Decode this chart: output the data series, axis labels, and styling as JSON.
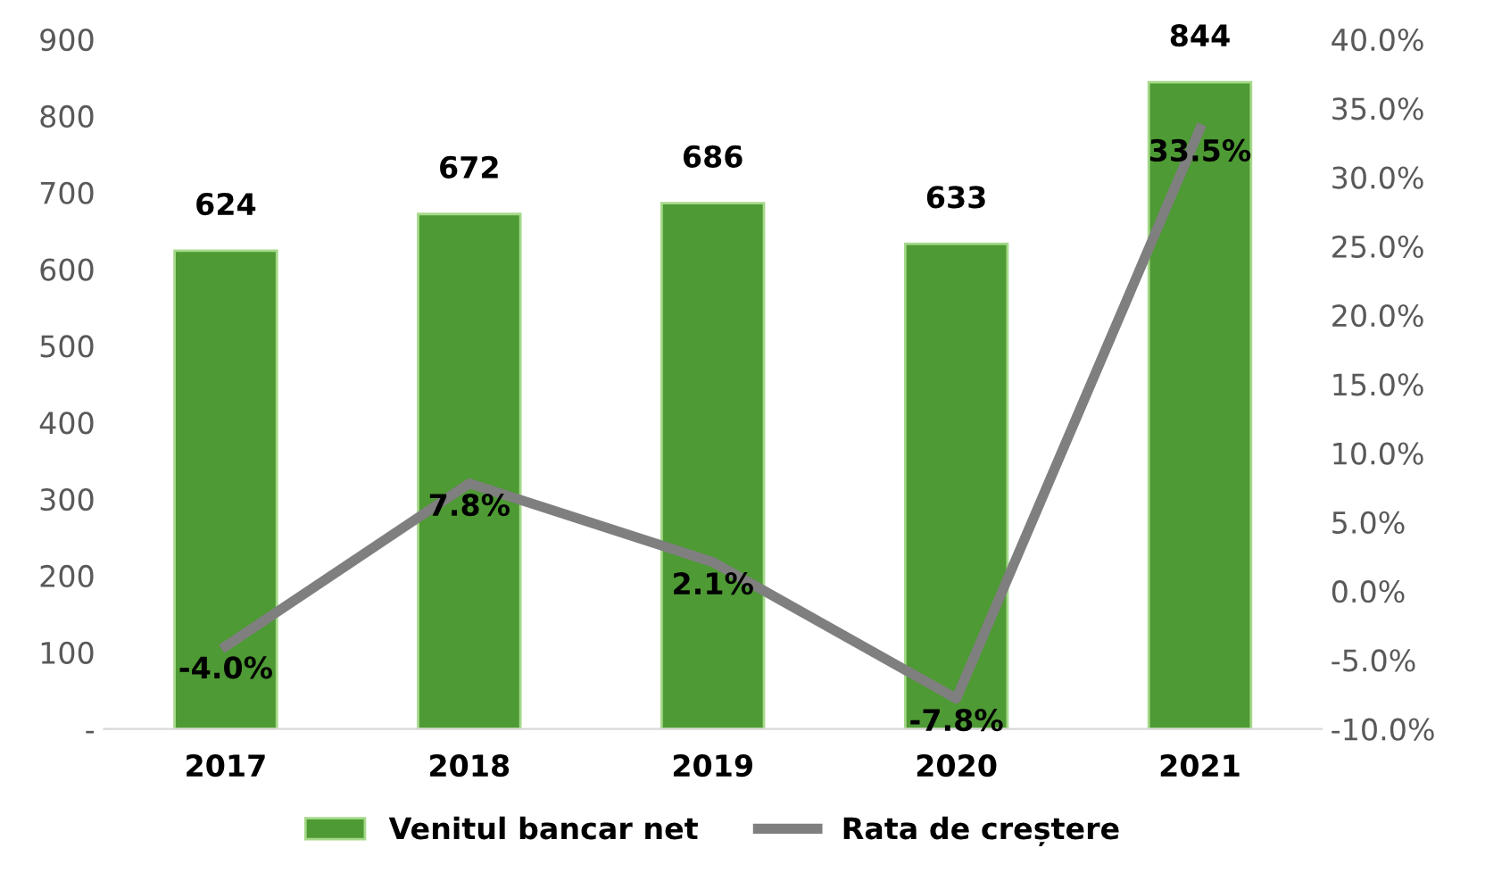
{
  "chart_data": {
    "type": "bar",
    "categories": [
      "2017",
      "2018",
      "2019",
      "2020",
      "2021"
    ],
    "series": [
      {
        "name": "Venitul bancar net",
        "color": "#4e9a34",
        "values": [
          624,
          672,
          686,
          633,
          844
        ],
        "value_labels": [
          "624",
          "672",
          "686",
          "633",
          "844"
        ]
      },
      {
        "name": "Rata de creștere",
        "type": "line",
        "axis": "y2",
        "color": "#7f7f7f",
        "values": [
          -4.0,
          7.8,
          2.1,
          -7.8,
          33.5
        ],
        "value_labels": [
          "-4.0%",
          "7.8%",
          "2.1%",
          "-7.8%",
          "33.5%"
        ]
      }
    ],
    "ylim": [
      0,
      900
    ],
    "yticks": [
      {
        "value": 0,
        "label": "-"
      },
      100,
      200,
      300,
      400,
      500,
      600,
      700,
      800,
      900
    ],
    "y2lim": [
      -10,
      40
    ],
    "y2ticks": [
      {
        "value": -10,
        "label": "-10.0%"
      },
      {
        "value": -5,
        "label": "-5.0%"
      },
      {
        "value": 0,
        "label": "0.0%"
      },
      {
        "value": 5,
        "label": "5.0%"
      },
      {
        "value": 10,
        "label": "10.0%"
      },
      {
        "value": 15,
        "label": "15.0%"
      },
      {
        "value": 20,
        "label": "20.0%"
      },
      {
        "value": 25,
        "label": "25.0%"
      },
      {
        "value": 30,
        "label": "30.0%"
      },
      {
        "value": 35,
        "label": "35.0%"
      },
      {
        "value": 40,
        "label": "40.0%"
      }
    ],
    "grid": false,
    "legend": "bottom",
    "marker": "none",
    "line_style": "solid"
  }
}
